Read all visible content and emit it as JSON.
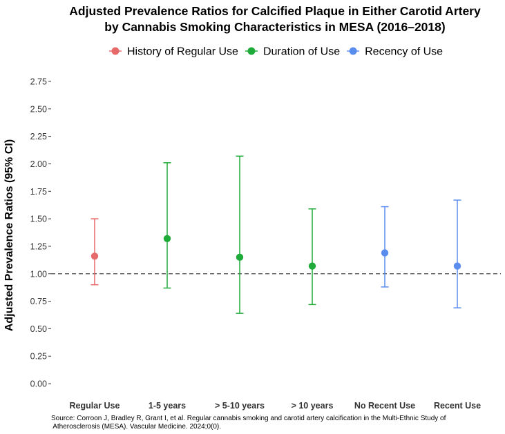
{
  "chart_data": {
    "type": "scatter",
    "title": [
      "Adjusted Prevalence Ratios for Calcified Plaque in Either Carotid Artery",
      "by Cannabis Smoking Characteristics in MESA (2016–2018)"
    ],
    "xlabel": "",
    "ylabel": "Adjusted Prevalence Ratios (95% CI)",
    "ylim": [
      -0.1,
      2.8
    ],
    "yticks": [
      "0.00",
      "0.25",
      "0.50",
      "0.75",
      "1.00",
      "1.25",
      "1.50",
      "1.75",
      "2.00",
      "2.25",
      "2.50",
      "2.75"
    ],
    "reference_line": 1.0,
    "legend_position": "top",
    "categories": [
      "Regular Use",
      "1-5 years",
      "> 5-10 years",
      "> 10 years",
      "No Recent Use",
      "Recent Use"
    ],
    "series": [
      {
        "name": "History of Regular Use",
        "color": "#E8696A",
        "points": [
          {
            "category": "Regular Use",
            "estimate": 1.16,
            "lower": 0.9,
            "upper": 1.5
          }
        ]
      },
      {
        "name": "Duration of Use",
        "color": "#1FAB3A",
        "points": [
          {
            "category": "1-5 years",
            "estimate": 1.32,
            "lower": 0.87,
            "upper": 2.01
          },
          {
            "category": "> 5-10 years",
            "estimate": 1.15,
            "lower": 0.64,
            "upper": 2.07
          },
          {
            "category": "> 10 years",
            "estimate": 1.07,
            "lower": 0.72,
            "upper": 1.59
          }
        ]
      },
      {
        "name": "Recency of Use",
        "color": "#5B8DEE",
        "points": [
          {
            "category": "No Recent Use",
            "estimate": 1.19,
            "lower": 0.88,
            "upper": 1.61
          },
          {
            "category": "Recent Use",
            "estimate": 1.07,
            "lower": 0.69,
            "upper": 1.67
          }
        ]
      }
    ],
    "source": [
      "Source: Corroon J, Bradley R, Grant I, et al. Regular cannabis smoking and carotid artery calcification in the Multi-Ethnic Study of",
      " Atherosclerosis (MESA). Vascular Medicine. 2024;0(0)."
    ]
  }
}
